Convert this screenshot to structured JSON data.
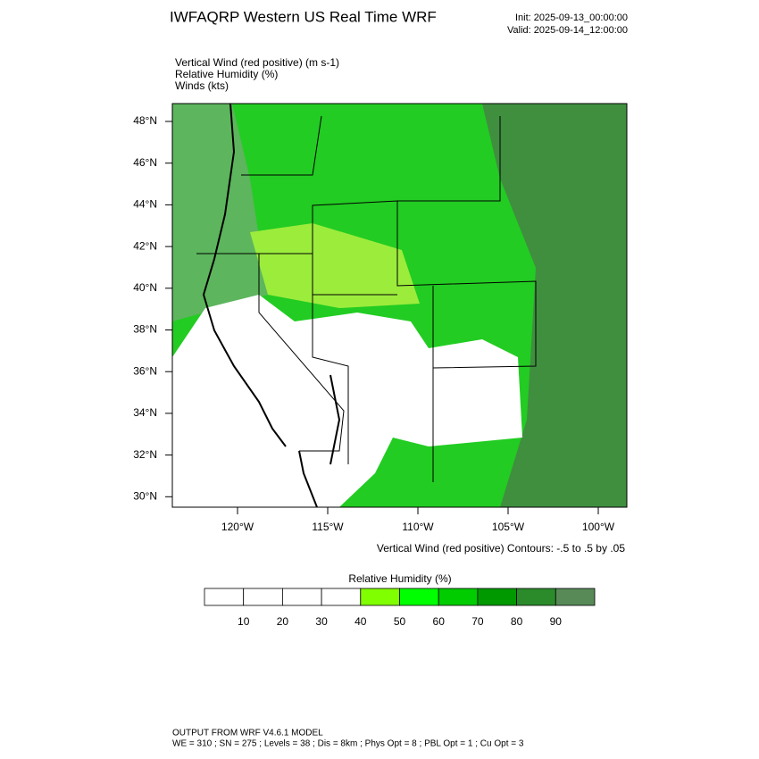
{
  "header": {
    "title": "IWFAQRP Western US Real Time WRF",
    "init": "Init: 2025-09-13_00:00:00",
    "valid": "Valid: 2025-09-14_12:00:00"
  },
  "fields": [
    "Vertical Wind (red positive)   (m s-1)",
    "Relative Humidity   (%)",
    "Winds   (kts)"
  ],
  "map": {
    "lat_labels": [
      "48°N",
      "46°N",
      "44°N",
      "42°N",
      "40°N",
      "38°N",
      "36°N",
      "34°N",
      "32°N",
      "30°N"
    ],
    "lon_labels": [
      "120°W",
      "115°W",
      "110°W",
      "105°W",
      "100°W"
    ],
    "contour_note": "Vertical Wind (red positive) Contours: -.5 to .5 by .05"
  },
  "colorbar": {
    "title": "Relative Humidity  (%)",
    "labels": [
      10,
      20,
      30,
      40,
      50,
      60,
      70,
      80,
      90
    ],
    "colors": [
      "#ffffff",
      "#ffffff",
      "#ffffff",
      "#ffffff",
      "#80ff00",
      "#00ff00",
      "#00cc00",
      "#009900",
      "#2b8b2b",
      "#578a57"
    ]
  },
  "footer": [
    "OUTPUT FROM WRF V4.6.1 MODEL",
    "WE = 310 ; SN = 275 ; Levels = 38 ; Dis = 8km ; Phys Opt = 8 ; PBL Opt = 1 ; Cu Opt = 3"
  ]
}
